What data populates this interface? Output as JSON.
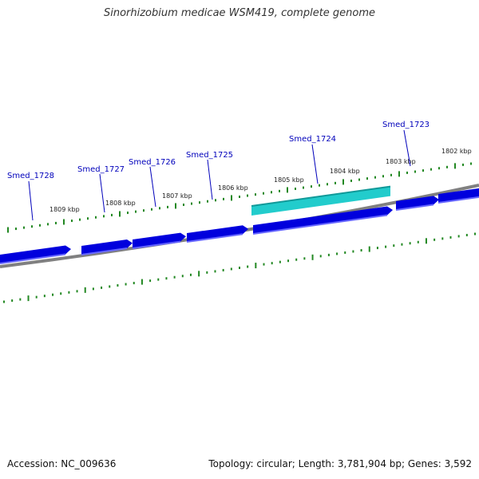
{
  "title": "Sinorhizobium medicae WSM419, complete genome",
  "footer": {
    "accession": "Accession: NC_009636",
    "stats": "Topology: circular; Length: 3,781,904 bp; Genes: 3,592"
  },
  "colors": {
    "gene_forward": "#0000dd",
    "gene_highlight": "#22cccc",
    "backbone": "#808080",
    "tick": "#228822",
    "label": "#0000bb",
    "kbp_label": "#222222"
  },
  "kbp_ticks": [
    "1809 kbp",
    "1808 kbp",
    "1807 kbp",
    "1806 kbp",
    "1805 kbp",
    "1804 kbp",
    "1803 kbp",
    "1802 kbp"
  ],
  "genes": [
    {
      "name": "Smed_1728",
      "highlight": false
    },
    {
      "name": "Smed_1727",
      "highlight": false
    },
    {
      "name": "Smed_1726",
      "highlight": false
    },
    {
      "name": "Smed_1725",
      "highlight": false
    },
    {
      "name": "Smed_1724",
      "highlight": true
    },
    {
      "name": "Smed_1723",
      "highlight": false
    }
  ]
}
